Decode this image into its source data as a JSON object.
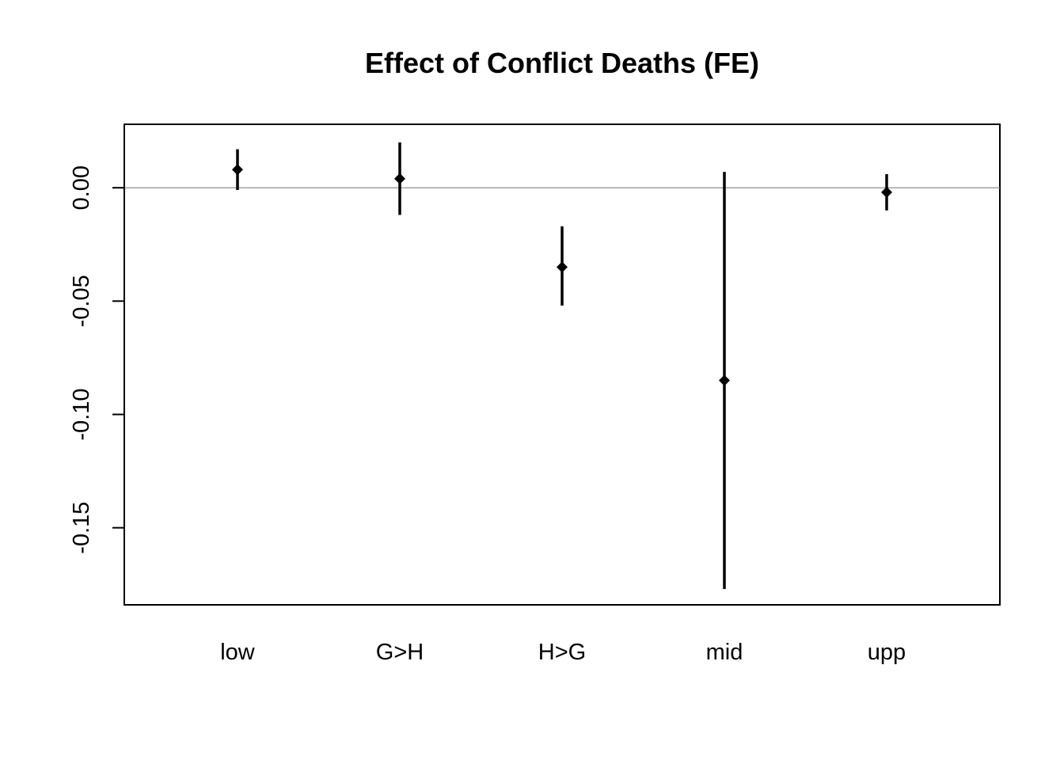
{
  "chart_data": {
    "type": "scatter",
    "title": "Effect of Conflict Deaths (FE)",
    "xlabel": "",
    "ylabel": "",
    "categories": [
      "low",
      "G>H",
      "H>G",
      "mid",
      "upp"
    ],
    "points": [
      {
        "category": "low",
        "estimate": 0.008,
        "lower": -0.001,
        "upper": 0.017
      },
      {
        "category": "G>H",
        "estimate": 0.004,
        "lower": -0.012,
        "upper": 0.02
      },
      {
        "category": "H>G",
        "estimate": -0.035,
        "lower": -0.052,
        "upper": -0.017
      },
      {
        "category": "mid",
        "estimate": -0.085,
        "lower": -0.177,
        "upper": 0.007
      },
      {
        "category": "upp",
        "estimate": -0.002,
        "lower": -0.01,
        "upper": 0.006
      }
    ],
    "yticks": [
      0.0,
      -0.05,
      -0.1,
      -0.15
    ],
    "ytick_labels": [
      "0.00",
      "-0.05",
      "-0.10",
      "-0.15"
    ],
    "ylim": [
      -0.184,
      0.028
    ],
    "reference_line": 0,
    "grid": false,
    "colors": {
      "marks": "#000000",
      "reference_line": "#808080",
      "frame": "#000000"
    }
  }
}
